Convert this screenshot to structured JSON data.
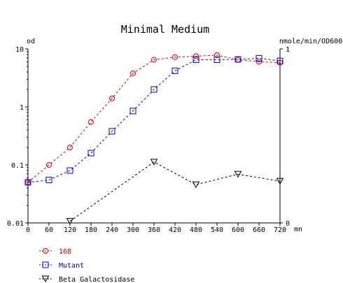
{
  "chart_data": {
    "type": "line",
    "title": "Minimal Medium",
    "xunit": "mn",
    "x": [
      0,
      60,
      120,
      180,
      240,
      300,
      360,
      420,
      480,
      540,
      600,
      660,
      720
    ],
    "xlim": [
      0,
      720
    ],
    "y_left": {
      "label": "od",
      "scale": "log",
      "lim": [
        0.01,
        10
      ],
      "ticks": [
        0.01,
        0.1,
        1,
        10
      ],
      "tick_labels": [
        "0.01",
        "0.1",
        "1",
        "10"
      ]
    },
    "y_right": {
      "label": "nmole/min/OD600",
      "scale": "linear",
      "lim": [
        0,
        1
      ],
      "ticks": [
        0,
        1
      ],
      "tick_labels": [
        "0",
        "1"
      ]
    },
    "series": [
      {
        "name": "168",
        "axis": "left",
        "color": "#cc0000",
        "marker": "circle",
        "x": [
          0,
          60,
          120,
          180,
          240,
          300,
          360,
          420,
          480,
          540,
          600,
          660,
          720
        ],
        "y": [
          0.05,
          0.1,
          0.2,
          0.55,
          1.4,
          3.8,
          6.5,
          7.2,
          7.5,
          7.8,
          6.5,
          6.0,
          5.8
        ]
      },
      {
        "name": "Mutant",
        "axis": "left",
        "color": "#0000cc",
        "marker": "square",
        "x": [
          0,
          60,
          120,
          180,
          240,
          300,
          360,
          420,
          480,
          540,
          600,
          660,
          720
        ],
        "y": [
          0.05,
          0.055,
          0.08,
          0.16,
          0.38,
          0.85,
          2.0,
          4.2,
          6.5,
          6.5,
          6.6,
          6.9,
          6.2
        ]
      },
      {
        "name": "Beta Galactosidase",
        "axis": "right",
        "color": "#000000",
        "marker": "triangle-down",
        "x": [
          120,
          360,
          480,
          600,
          720
        ],
        "y": [
          0.01,
          0.35,
          0.22,
          0.28,
          0.24
        ]
      }
    ],
    "legend": {
      "placement": "bottom-left",
      "entries": [
        {
          "label": "168",
          "color": "#cc0000",
          "marker": "circle"
        },
        {
          "label": "Mutant",
          "color": "#0000cc",
          "marker": "square"
        },
        {
          "label": "Beta Galactosidase",
          "color": "#000000",
          "marker": "triangle-down"
        }
      ]
    },
    "grid": false
  }
}
